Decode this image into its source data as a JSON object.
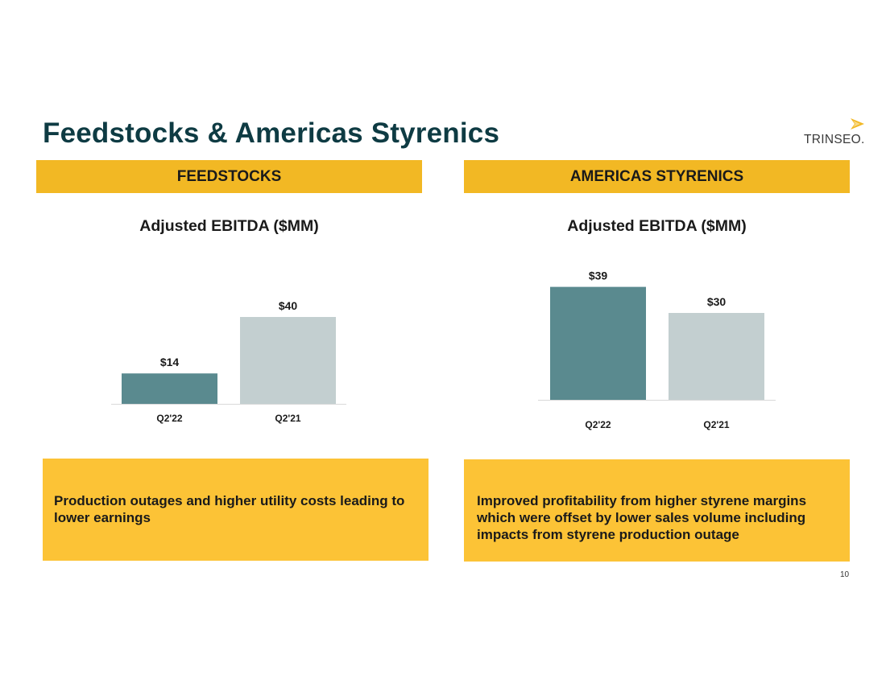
{
  "slide": {
    "title": "Feedstocks & Americas Styrenics",
    "logo_text": "TRINSEO.",
    "page_number": "10"
  },
  "colors": {
    "accent_bar": "#f2b824",
    "note_box": "#fcc336",
    "current_bar": "#5a8a8f",
    "prior_bar": "#c3cfd0",
    "title_text": "#0e3b43"
  },
  "panels": [
    {
      "header": "FEEDSTOCKS",
      "chart_title": "Adjusted EBITDA ($MM)",
      "note": "Production outages and higher utility costs leading to lower earnings"
    },
    {
      "header": "AMERICAS STYRENICS",
      "chart_title": "Adjusted EBITDA ($MM)",
      "note": "Improved profitability from higher styrene margins which were offset by lower sales volume including impacts from styrene production outage"
    }
  ],
  "chart_data": [
    {
      "type": "bar",
      "title": "Adjusted EBITDA ($MM)",
      "categories": [
        "Q2'22",
        "Q2'21"
      ],
      "values": [
        14,
        40
      ],
      "value_labels": [
        "$14",
        "$40"
      ],
      "bar_colors": [
        "#5a8a8f",
        "#c3cfd0"
      ],
      "xlabel": "",
      "ylabel": "",
      "grid": false,
      "legend": "none"
    },
    {
      "type": "bar",
      "title": "Adjusted EBITDA ($MM)",
      "categories": [
        "Q2'22",
        "Q2'21"
      ],
      "values": [
        39,
        30
      ],
      "value_labels": [
        "$39",
        "$30"
      ],
      "bar_colors": [
        "#5a8a8f",
        "#c3cfd0"
      ],
      "xlabel": "",
      "ylabel": "",
      "grid": false,
      "legend": "none"
    }
  ]
}
